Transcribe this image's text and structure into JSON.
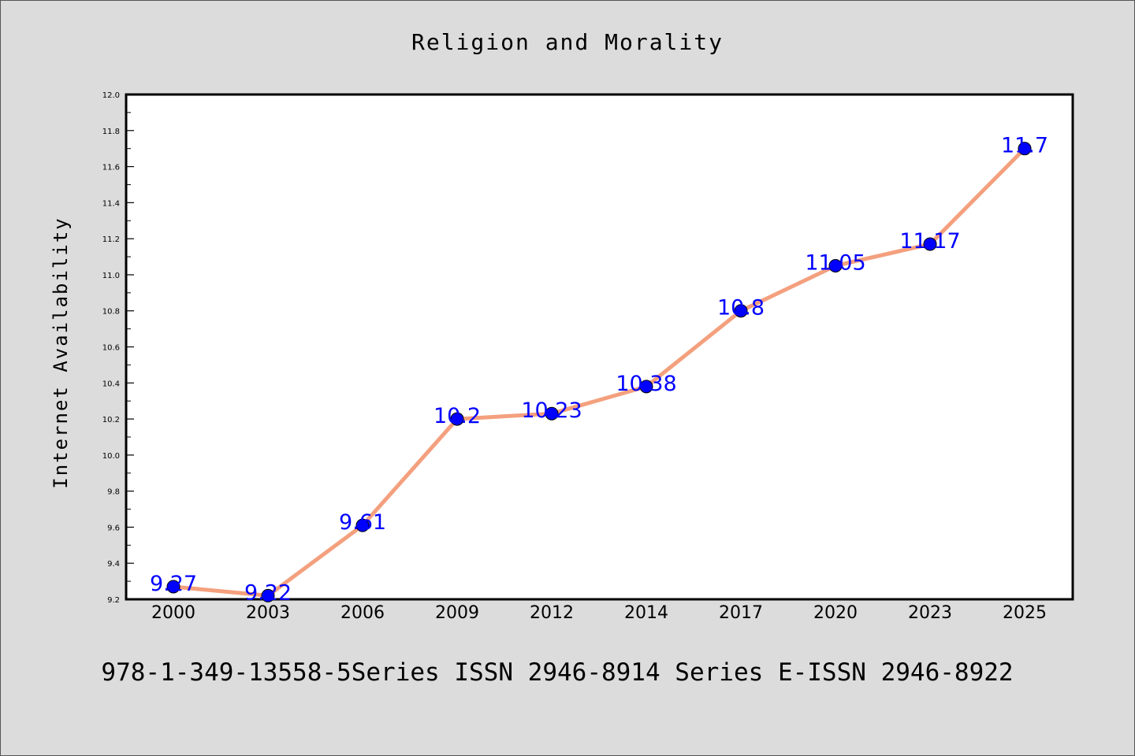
{
  "chart_data": {
    "type": "line",
    "title": "Religion and Morality",
    "xlabel": "",
    "ylabel": "Internet Availability",
    "categories": [
      "2000",
      "2003",
      "2006",
      "2009",
      "2012",
      "2014",
      "2017",
      "2020",
      "2023",
      "2025"
    ],
    "series": [
      {
        "values": [
          9.27,
          9.22,
          9.61,
          10.2,
          10.23,
          10.38,
          10.8,
          11.05,
          11.17,
          11.7
        ],
        "labels": [
          "9.27",
          "9.22",
          "9.61",
          "10.2",
          "10.23",
          "10.38",
          "10.8",
          "11.05",
          "11.17",
          "11.7"
        ]
      }
    ],
    "ylim": [
      9.2,
      12.0
    ],
    "yticks": [
      "9.2",
      "9.4",
      "9.6",
      "9.8",
      "10.0",
      "10.2",
      "10.4",
      "10.6",
      "10.8",
      "11.0",
      "11.2",
      "11.4",
      "11.6",
      "11.8",
      "12.0"
    ],
    "grid": false,
    "legend": "none",
    "colors": {
      "line": "#f4a07e",
      "marker": "#0000ff",
      "label": "#0000ff",
      "background": "#dcdcdc",
      "plot_background": "#ffffff"
    }
  },
  "footer_text": "978-1-349-13558-5Series ISSN 2946-8914 Series E-ISSN 2946-8922"
}
